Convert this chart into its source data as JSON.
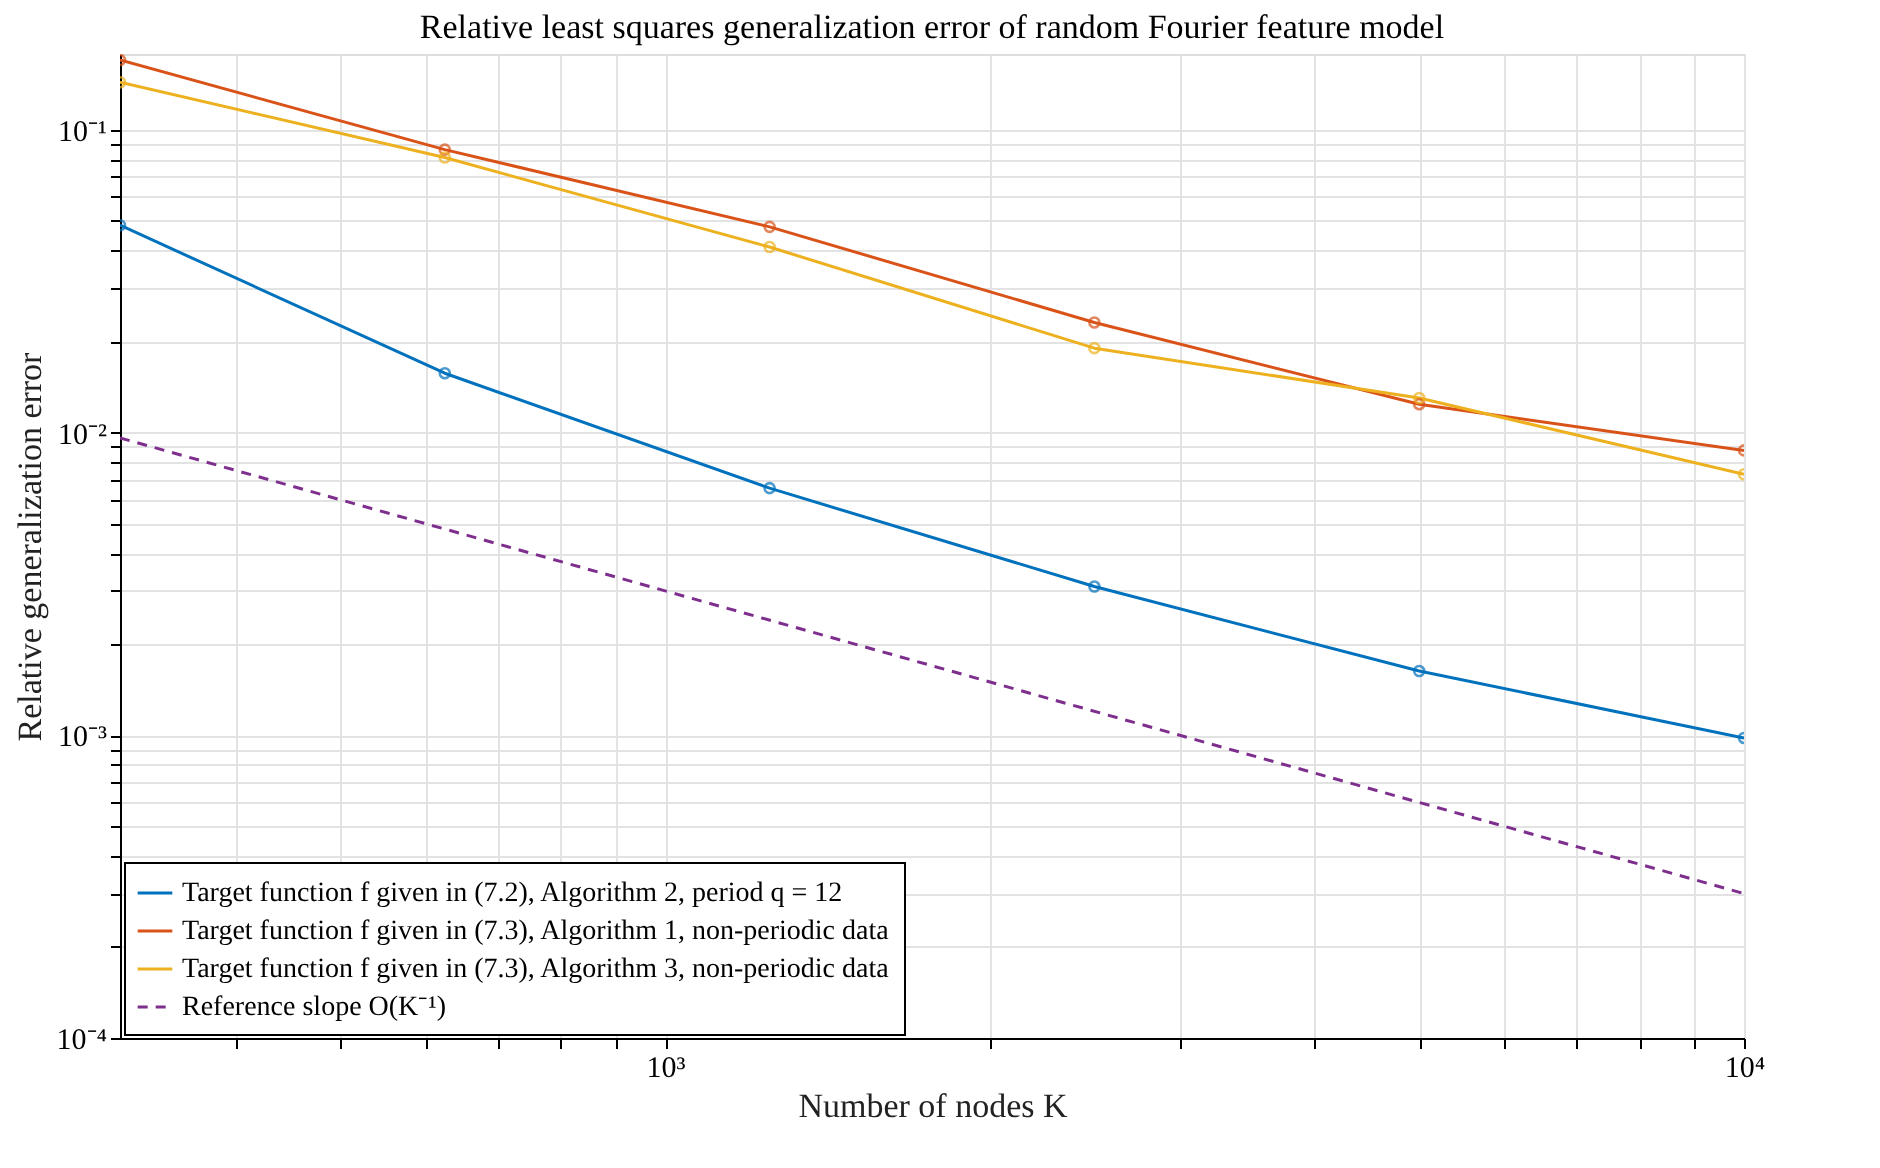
{
  "chart_data": {
    "type": "line",
    "title": "Relative least squares generalization error of random Fourier feature model",
    "xlabel": "Number of nodes K",
    "ylabel": "Relative generalization error",
    "log": "xy",
    "grid": true,
    "legend": "bottom left",
    "xlim": [
      312.5,
      10000
    ],
    "ylim": [
      0.0001,
      0.178
    ],
    "xticks": [
      {
        "value": 400,
        "label": null
      },
      {
        "value": 500,
        "label": null
      },
      {
        "value": 600,
        "label": null
      },
      {
        "value": 700,
        "label": null
      },
      {
        "value": 800,
        "label": null
      },
      {
        "value": 900,
        "label": null
      },
      {
        "value": 1000,
        "label": "10³"
      },
      {
        "value": 2000,
        "label": null
      },
      {
        "value": 3000,
        "label": null
      },
      {
        "value": 4000,
        "label": null
      },
      {
        "value": 5000,
        "label": null
      },
      {
        "value": 6000,
        "label": null
      },
      {
        "value": 7000,
        "label": null
      },
      {
        "value": 8000,
        "label": null
      },
      {
        "value": 9000,
        "label": null
      },
      {
        "value": 10000,
        "label": "10⁴"
      }
    ],
    "yticks": [
      {
        "value": 0.0001,
        "label": "10⁻⁴"
      },
      {
        "value": 0.0002,
        "label": null
      },
      {
        "value": 0.0003,
        "label": null
      },
      {
        "value": 0.0004,
        "label": null
      },
      {
        "value": 0.0005,
        "label": null
      },
      {
        "value": 0.0006,
        "label": null
      },
      {
        "value": 0.0007,
        "label": null
      },
      {
        "value": 0.0008,
        "label": null
      },
      {
        "value": 0.0009,
        "label": null
      },
      {
        "value": 0.001,
        "label": "10⁻³"
      },
      {
        "value": 0.002,
        "label": null
      },
      {
        "value": 0.003,
        "label": null
      },
      {
        "value": 0.004,
        "label": null
      },
      {
        "value": 0.005,
        "label": null
      },
      {
        "value": 0.006,
        "label": null
      },
      {
        "value": 0.007,
        "label": null
      },
      {
        "value": 0.008,
        "label": null
      },
      {
        "value": 0.009,
        "label": null
      },
      {
        "value": 0.01,
        "label": "10⁻²"
      },
      {
        "value": 0.02,
        "label": null
      },
      {
        "value": 0.03,
        "label": null
      },
      {
        "value": 0.04,
        "label": null
      },
      {
        "value": 0.05,
        "label": null
      },
      {
        "value": 0.06,
        "label": null
      },
      {
        "value": 0.07,
        "label": null
      },
      {
        "value": 0.08,
        "label": null
      },
      {
        "value": 0.09,
        "label": null
      },
      {
        "value": 0.1,
        "label": "10⁻¹"
      }
    ],
    "x": [
      312.5,
      625,
      1250,
      2500,
      5000,
      10000
    ],
    "series": [
      {
        "name": "Target function f given in (7.2), Algorithm 2, period q = 12",
        "color": "#0072bd",
        "marker": "circle",
        "line_style": "solid",
        "values": [
          0.0484,
          0.0157,
          0.00655,
          0.0031,
          0.00163,
          0.00098
        ]
      },
      {
        "name": "Target function f given in (7.3), Algorithm 1, non-periodic data",
        "color": "#d95319",
        "marker": "circle",
        "line_style": "solid",
        "values": [
          0.17,
          0.086,
          0.0478,
          0.0231,
          0.0124,
          0.00873
        ]
      },
      {
        "name": "Target function f given in (7.3), Algorithm 3, non-periodic data",
        "color": "#edb120",
        "marker": "circle",
        "line_style": "solid",
        "values": [
          0.1436,
          0.081,
          0.041,
          0.019,
          0.013,
          0.00728
        ]
      },
      {
        "name": "Reference slope O(K⁻¹)",
        "color": "#7e2f8e",
        "marker": "none",
        "line_style": "dashed",
        "x": [
          312.5,
          10000
        ],
        "values": [
          0.0096,
          0.0003
        ]
      }
    ]
  }
}
